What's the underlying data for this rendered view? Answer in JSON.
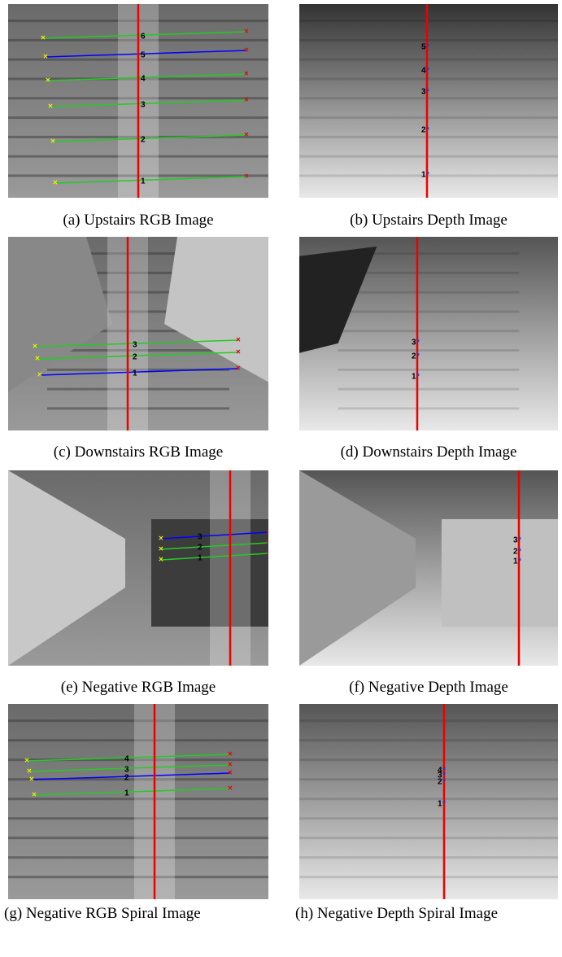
{
  "panels": [
    {
      "caption": "(a) Upstairs RGB Image",
      "labels": [
        "6",
        "5",
        "4",
        "3",
        "2",
        "1"
      ]
    },
    {
      "caption": "(b) Upstairs Depth Image",
      "labels": [
        "5",
        "4",
        "3",
        "2",
        "1"
      ]
    },
    {
      "caption": "(c) Downstairs RGB Image",
      "labels": [
        "3",
        "2",
        "1"
      ]
    },
    {
      "caption": "(d) Downstairs Depth Image",
      "labels": [
        "3",
        "2",
        "1"
      ]
    },
    {
      "caption": "(e) Negative RGB Image",
      "labels": [
        "3",
        "2",
        "1"
      ]
    },
    {
      "caption": "(f) Negative Depth Image",
      "labels": [
        "3",
        "2",
        "1"
      ]
    },
    {
      "caption": "(g) Negative RGB Spiral Image",
      "labels": [
        "4",
        "3",
        "2",
        "1"
      ]
    },
    {
      "caption": "(h) Negative Depth Spiral Image",
      "labels": [
        "4",
        "3",
        "2",
        "1"
      ]
    }
  ]
}
